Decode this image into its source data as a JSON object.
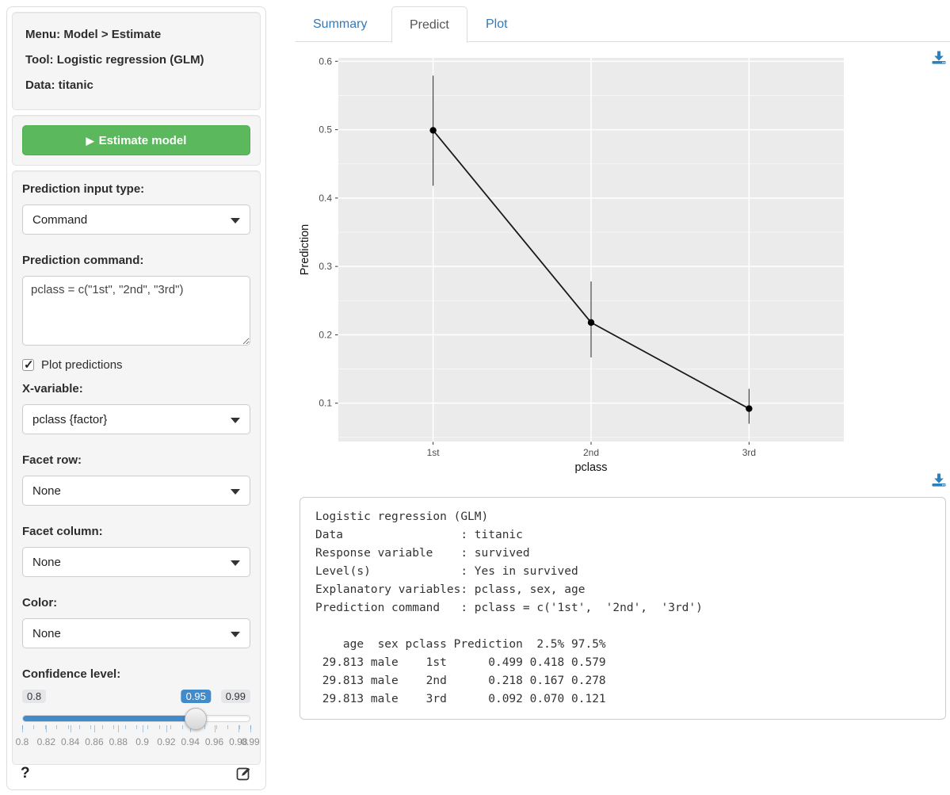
{
  "sidebar": {
    "header": {
      "menu": "Menu: Model > Estimate",
      "tool": "Tool: Logistic regression (GLM)",
      "data": "Data: titanic"
    },
    "estimate_button": {
      "play_icon": "▶",
      "label": "Estimate model"
    },
    "fields": {
      "input_type": {
        "label": "Prediction input type:",
        "value": "Command"
      },
      "command": {
        "label": "Prediction command:",
        "value": "pclass = c(\"1st\", \"2nd\", \"3rd\")"
      },
      "plot_predictions": {
        "label": "Plot predictions",
        "checked": true,
        "check_glyph": "✓"
      },
      "x_variable": {
        "label": "X-variable:",
        "value": "pclass {factor}"
      },
      "facet_row": {
        "label": "Facet row:",
        "value": "None"
      },
      "facet_column": {
        "label": "Facet column:",
        "value": "None"
      },
      "color": {
        "label": "Color:",
        "value": "None"
      }
    },
    "confidence": {
      "label": "Confidence level:",
      "min": 0.8,
      "max": 0.99,
      "value": 0.95,
      "min_label": "0.8",
      "max_label": "0.99",
      "value_label": "0.95",
      "grid_values": [
        0.8,
        0.82,
        0.84,
        0.86,
        0.88,
        0.9,
        0.92,
        0.94,
        0.96,
        0.98,
        0.99
      ],
      "grid_labels": [
        "0.8",
        "0.82",
        "0.84",
        "0.86",
        "0.88",
        "0.9",
        "0.92",
        "0.94",
        "0.96",
        "0.98",
        "0.99"
      ],
      "n_minor_ticks": 20
    },
    "help_icon": "?"
  },
  "tabs": [
    {
      "label": "Summary",
      "active": false
    },
    {
      "label": "Predict",
      "active": true
    },
    {
      "label": "Plot",
      "active": false
    }
  ],
  "chart_data": {
    "type": "line",
    "categories": [
      "1st",
      "2nd",
      "3rd"
    ],
    "series": [
      {
        "name": "Prediction",
        "values": [
          0.499,
          0.218,
          0.092
        ],
        "ci_low": [
          0.418,
          0.167,
          0.07
        ],
        "ci_high": [
          0.579,
          0.278,
          0.121
        ]
      }
    ],
    "title": "",
    "xlabel": "pclass",
    "ylabel": "Prediction",
    "yticks": [
      0.1,
      0.2,
      0.3,
      0.4,
      0.5,
      0.6
    ],
    "ylim": [
      0.044,
      0.605
    ],
    "grid": true,
    "legend": false,
    "panel_color": "#ebebeb",
    "grid_color": "#ffffff",
    "point_color": "#000000"
  },
  "output": {
    "lines": [
      "Logistic regression (GLM)",
      "Data                 : titanic",
      "Response variable    : survived",
      "Level(s)             : Yes in survived",
      "Explanatory variables: pclass, sex, age",
      "Prediction command   : pclass = c('1st',  '2nd',  '3rd')",
      "",
      "    age  sex pclass Prediction  2.5% 97.5%",
      " 29.813 male    1st      0.499 0.418 0.579",
      " 29.813 male    2nd      0.218 0.167 0.278",
      " 29.813 male    3rd      0.092 0.070 0.121"
    ]
  },
  "colors": {
    "accent_green": "#5cb85c",
    "accent_blue": "#428bca",
    "link_blue": "#337ab7",
    "panel_gray": "#ebebeb"
  }
}
